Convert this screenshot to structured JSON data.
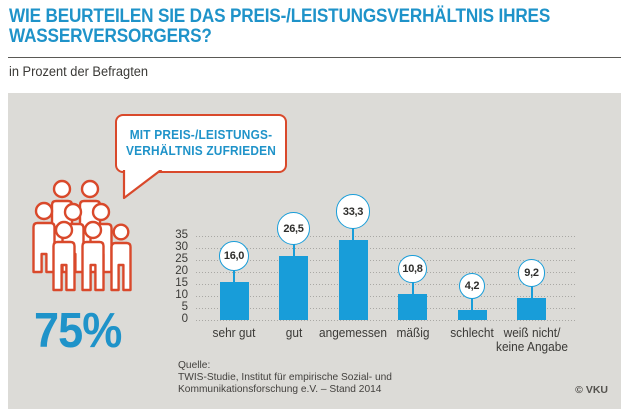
{
  "header": {
    "title_line1": "WIE BEURTEILEN SIE DAS PREIS-/LEISTUNGSVERHÄLTNIS IHRES",
    "title_line2": "WASSERVERSORGERS?",
    "subtitle": "in Prozent der Befragten"
  },
  "callout": {
    "line1": "MIT PREIS-/LEISTUNGS-",
    "line2": "VERHÄLTNIS ZUFRIEDEN",
    "percent": "75%"
  },
  "icons": {
    "people_group": "people-group-icon",
    "speech_bubble_tail": "speech-bubble-tail-icon"
  },
  "chart_data": {
    "type": "bar",
    "categories": [
      "sehr gut",
      "gut",
      "angemessen",
      "mäßig",
      "schlecht",
      "weiß nicht/\nkeine Angabe"
    ],
    "values": [
      16.0,
      26.5,
      33.3,
      10.8,
      4.2,
      9.2
    ],
    "value_labels": [
      "16,0",
      "26,5",
      "33,3",
      "10,8",
      "4,2",
      "9,2"
    ],
    "title": "Wie beurteilen Sie das Preis-/Leistungsverhältnis Ihres Wasserversorgers?",
    "xlabel": "",
    "ylabel": "in Prozent der Befragten",
    "ylim": [
      0,
      35
    ],
    "ytick_step": 5,
    "grid": "dotted-horizontal",
    "legend": "none"
  },
  "footer": {
    "source_label": "Quelle:",
    "source_line1": "TWIS-Studie, Institut für empirische Sozial- und",
    "source_line2": "Kommunikationsforschung e.V. – Stand 2014",
    "copyright": "© VKU"
  },
  "colors": {
    "accent_blue": "#1f93c9",
    "bar_blue": "#189dd9",
    "accent_red": "#d9492b",
    "panel_gray": "#dcdbd7",
    "text_dark": "#3b3a37"
  }
}
